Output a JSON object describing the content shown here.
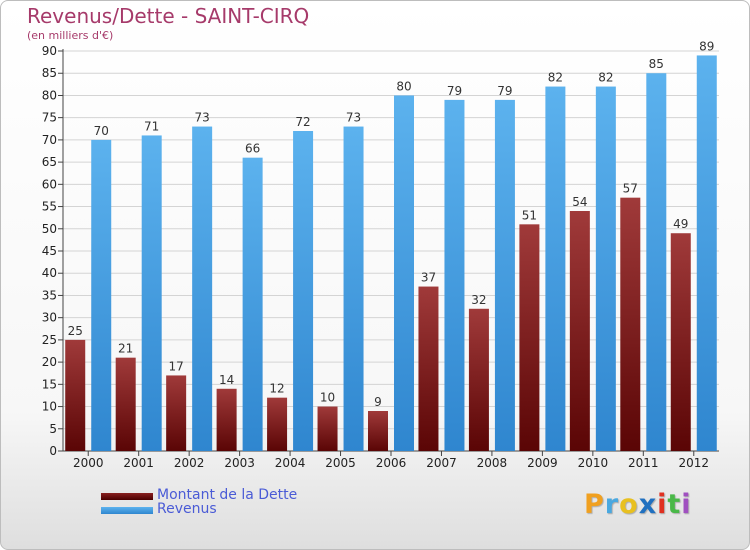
{
  "header": {
    "title": "Revenus/Dette - SAINT-CIRQ",
    "subtitle": "(en milliers d'€)"
  },
  "chart_data": {
    "type": "bar",
    "title": "Revenus/Dette - SAINT-CIRQ",
    "subtitle": "(en milliers d'€)",
    "xlabel": "",
    "ylabel": "",
    "ylim": [
      0,
      90
    ],
    "y_ticks": [
      0,
      5,
      10,
      15,
      20,
      25,
      30,
      35,
      40,
      45,
      50,
      55,
      60,
      65,
      70,
      75,
      80,
      85,
      90
    ],
    "grid": true,
    "legend_position": "bottom-left",
    "categories": [
      "2000",
      "2001",
      "2002",
      "2003",
      "2004",
      "2005",
      "2006",
      "2007",
      "2008",
      "2009",
      "2010",
      "2011",
      "2012"
    ],
    "series": [
      {
        "name": "Montant de la Dette",
        "color": "#7a1c1c",
        "values": [
          25,
          21,
          17,
          14,
          12,
          10,
          9,
          37,
          32,
          51,
          54,
          57,
          49
        ]
      },
      {
        "name": "Revenus",
        "color": "#4a9fe0",
        "values": [
          70,
          71,
          73,
          66,
          72,
          73,
          80,
          79,
          79,
          82,
          82,
          85,
          89
        ]
      }
    ]
  },
  "legend": {
    "items": [
      {
        "label": "Montant de la Dette",
        "color": "#6b0f0f"
      },
      {
        "label": "Revenus",
        "color": "#3d96dc"
      }
    ]
  },
  "logo": {
    "letters": [
      "P",
      "r",
      "o",
      "x",
      "i",
      "t",
      "i"
    ],
    "colors": [
      "#f0a020",
      "#49a8e0",
      "#e8c020",
      "#2070c0",
      "#e03020",
      "#49b848",
      "#a050c0"
    ]
  }
}
